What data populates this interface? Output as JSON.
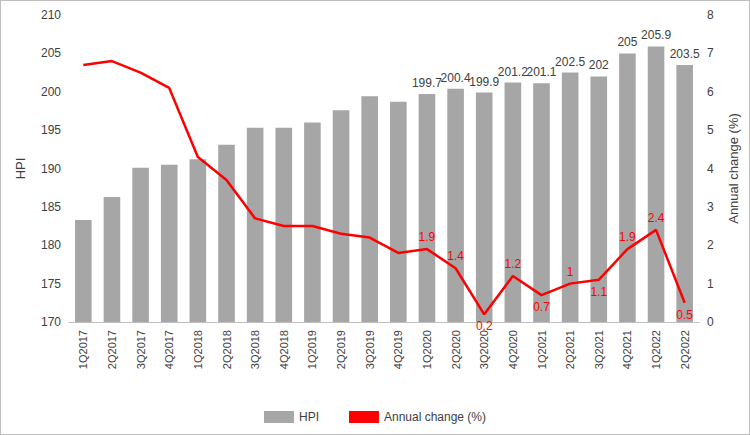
{
  "chart_data": {
    "type": "bar",
    "categories": [
      "1Q2017",
      "2Q2017",
      "3Q2017",
      "4Q2017",
      "1Q2018",
      "2Q2018",
      "3Q2018",
      "4Q2018",
      "1Q2019",
      "2Q2019",
      "3Q2019",
      "4Q2019",
      "1Q2020",
      "2Q2020",
      "3Q2020",
      "4Q2020",
      "1Q2021",
      "2Q2021",
      "3Q2021",
      "4Q2021",
      "1Q2022",
      "2Q2022"
    ],
    "y_label": "HPI",
    "y2_label": "Annual change (%)",
    "ylim": [
      170,
      210
    ],
    "yticks": [
      170,
      175,
      180,
      185,
      190,
      195,
      200,
      205,
      210
    ],
    "y2lim": [
      0,
      8
    ],
    "y2ticks": [
      0,
      1,
      2,
      3,
      4,
      5,
      6,
      7,
      8
    ],
    "grid": false,
    "legend": "bottom",
    "series": [
      {
        "name": "HPI",
        "type": "bar",
        "color": "#a6a6a6",
        "values": [
          183.3,
          186.3,
          190.1,
          190.5,
          191.2,
          193.1,
          195.3,
          195.3,
          196.0,
          197.6,
          199.4,
          198.7,
          199.7,
          200.4,
          199.9,
          201.2,
          201.1,
          202.5,
          202,
          205,
          205.9,
          203.5
        ],
        "data_labels": true,
        "value_labels": [
          null,
          null,
          null,
          null,
          null,
          null,
          null,
          null,
          null,
          null,
          null,
          null,
          "199.7",
          "200.4",
          "199.9",
          "201.2",
          "201.1",
          "202.5",
          "202",
          "205",
          "205.9",
          "203.5"
        ]
      },
      {
        "name": "Annual change (%)",
        "type": "line",
        "axis": "y2",
        "color": "#ff0000",
        "marker": "none",
        "values": [
          6.7,
          6.8,
          6.5,
          6.1,
          4.3,
          3.7,
          2.7,
          2.5,
          2.5,
          2.3,
          2.2,
          1.8,
          1.9,
          1.4,
          0.2,
          1.2,
          0.7,
          1,
          1.1,
          1.9,
          2.4,
          0.5
        ],
        "data_labels": true,
        "value_labels": [
          null,
          null,
          null,
          null,
          null,
          null,
          null,
          null,
          null,
          null,
          null,
          null,
          "1.9",
          "1.4",
          "0.2",
          "1.2",
          "0.7",
          "1",
          "1.1",
          "1.9",
          "2.4",
          "0.5"
        ]
      }
    ]
  }
}
